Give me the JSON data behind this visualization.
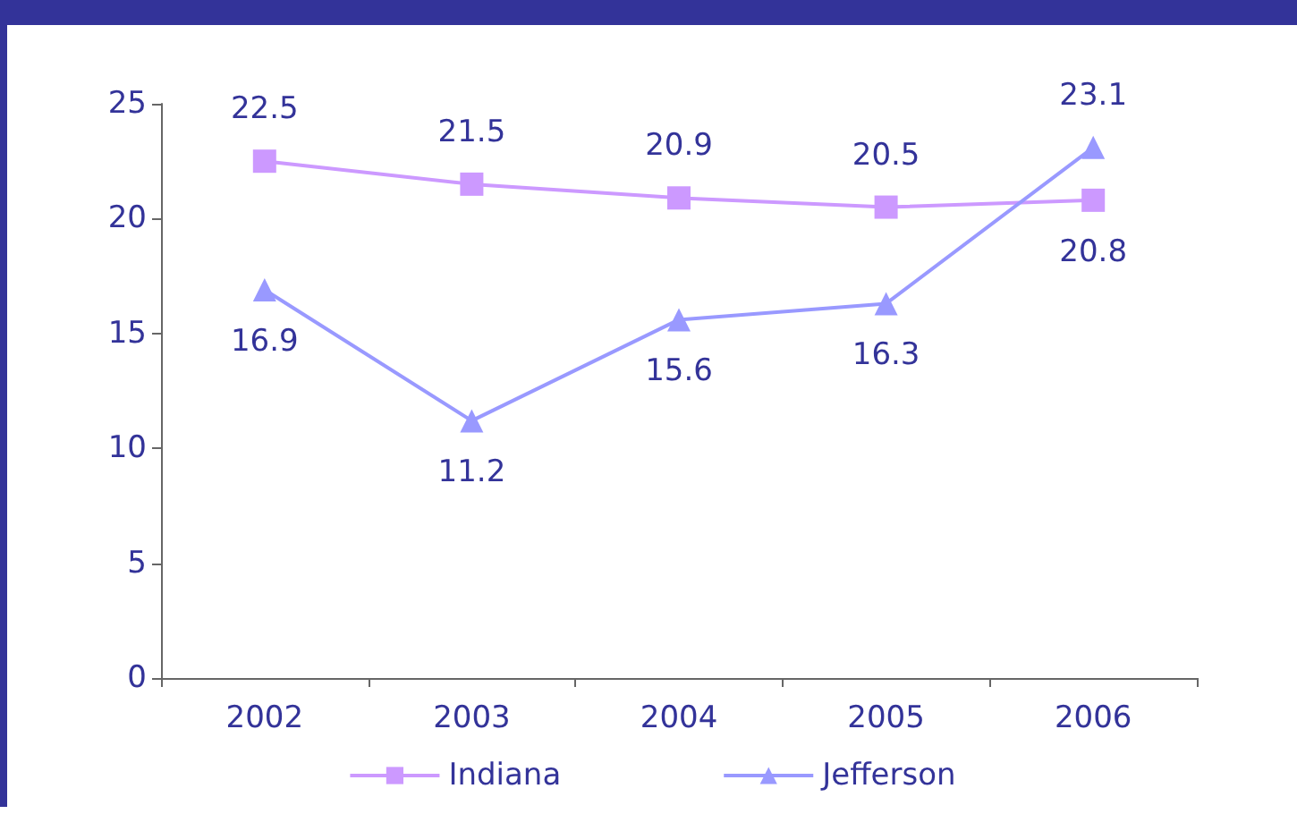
{
  "chart_data": {
    "type": "line",
    "categories": [
      "2002",
      "2003",
      "2004",
      "2005",
      "2006"
    ],
    "series": [
      {
        "name": "Indiana",
        "color": "#cc99ff",
        "marker": "square",
        "values": [
          22.5,
          21.5,
          20.9,
          20.5,
          20.8
        ]
      },
      {
        "name": "Jefferson",
        "color": "#9999ff",
        "marker": "triangle",
        "values": [
          16.9,
          11.2,
          15.6,
          16.3,
          23.1
        ]
      }
    ],
    "ylim": [
      0,
      25
    ],
    "yticks": [
      0,
      5,
      10,
      15,
      20,
      25
    ],
    "grid": false,
    "legend": "bottom",
    "data_labels": true
  }
}
